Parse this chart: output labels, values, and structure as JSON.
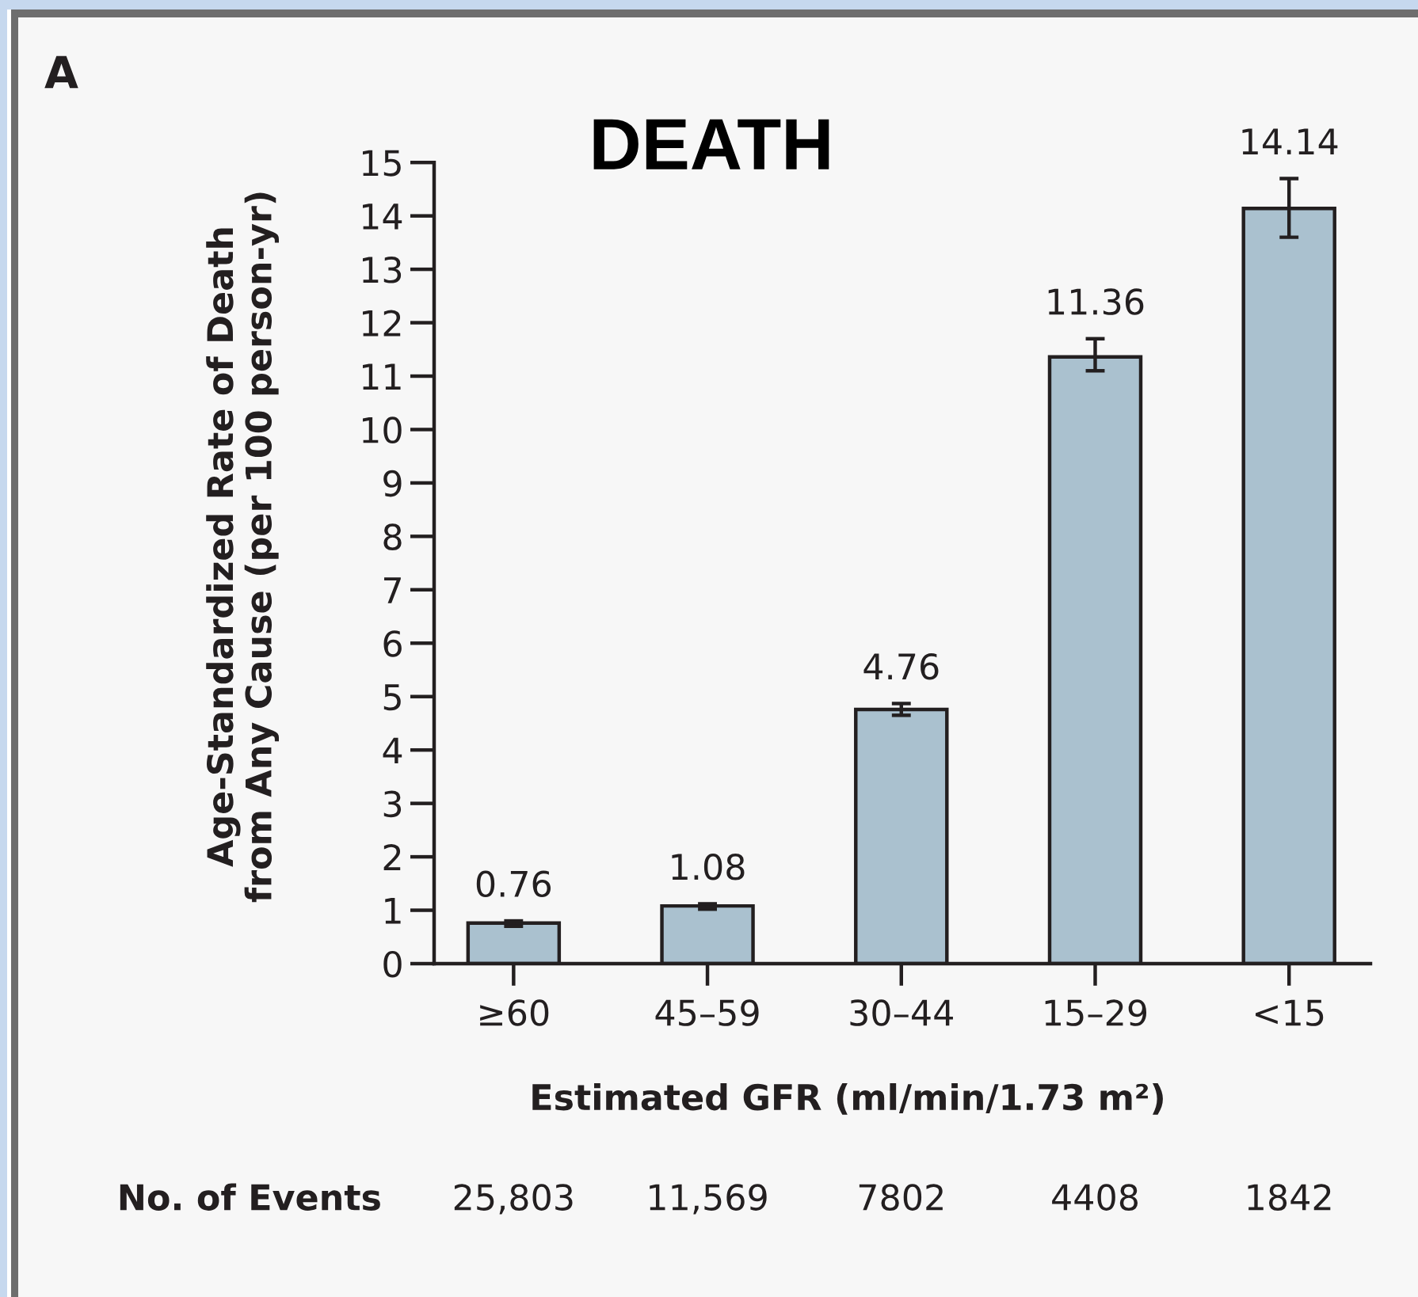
{
  "chart_data": {
    "type": "bar",
    "title": "DEATH",
    "xlabel": "Estimated GFR (ml/min/1.73 m²)",
    "ylabel": "Age-Standardized Rate of Death\nfrom Any Cause (per 100 person-yr)",
    "categories": [
      "≥60",
      "45–59",
      "30–44",
      "15–29",
      "<15"
    ],
    "values": [
      0.76,
      1.08,
      4.76,
      11.36,
      14.14
    ],
    "color": "#aac1cf",
    "errors": [
      [
        0.7,
        0.8
      ],
      [
        1.02,
        1.12
      ],
      [
        4.65,
        4.87
      ],
      [
        11.1,
        11.7
      ],
      [
        13.6,
        14.7
      ]
    ],
    "data_labels": true,
    "ylim": [
      0,
      15
    ],
    "yticks": [
      0,
      1,
      2,
      3,
      4,
      5,
      6,
      7,
      8,
      9,
      10,
      11,
      12,
      13,
      14,
      15
    ],
    "annotations": [
      "A",
      "No. of Events",
      "25,803",
      "11,569",
      "7802",
      "4408",
      "1842"
    ]
  }
}
